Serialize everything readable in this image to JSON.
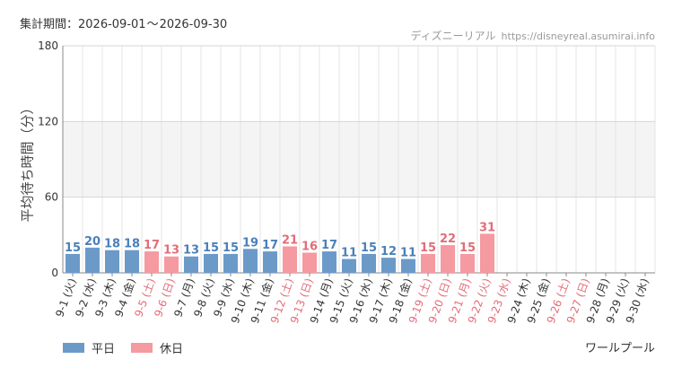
{
  "header": {
    "period_label": "集計期間：",
    "period_start": "2026-09-01",
    "period_sep": "～",
    "period_end": "2026-09-30",
    "brand_name": "ディズニーリアル",
    "brand_url": "https://disneyreal.asumirai.info"
  },
  "attraction": "ワールプール",
  "legend": [
    {
      "label": "平日",
      "color": "#6b9ac9"
    },
    {
      "label": "休日",
      "color": "#f49aa0"
    }
  ],
  "colors": {
    "weekday_bar": "#6b9ac9",
    "holiday_bar": "#f49aa0",
    "weekday_text": "#4a80b8",
    "holiday_text": "#e26d78",
    "axis_text": "#333333",
    "grid": "#e5e5e5",
    "band": "#f4f4f4"
  },
  "chart_data": {
    "type": "bar",
    "ylabel": "平均待ち時間（分）",
    "ylim": [
      0,
      180
    ],
    "yticks": [
      0,
      60,
      120,
      180
    ],
    "grid": true,
    "legend_position": "bottom-left",
    "categories": [
      "9-1",
      "9-2",
      "9-3",
      "9-4",
      "9-5",
      "9-6",
      "9-7",
      "9-8",
      "9-9",
      "9-10",
      "9-11",
      "9-12",
      "9-13",
      "9-14",
      "9-15",
      "9-16",
      "9-17",
      "9-18",
      "9-19",
      "9-20",
      "9-21",
      "9-22",
      "9-23",
      "9-24",
      "9-25",
      "9-26",
      "9-27",
      "9-28",
      "9-29",
      "9-30"
    ],
    "weekdays": [
      "(火)",
      "(水)",
      "(木)",
      "(金)",
      "(土)",
      "(日)",
      "(月)",
      "(火)",
      "(水)",
      "(木)",
      "(金)",
      "(土)",
      "(日)",
      "(月)",
      "(火)",
      "(水)",
      "(木)",
      "(金)",
      "(土)",
      "(日)",
      "(月)",
      "(火)",
      "(水)",
      "(木)",
      "(金)",
      "(土)",
      "(日)",
      "(月)",
      "(火)",
      "(水)"
    ],
    "day_type": [
      "平日",
      "平日",
      "平日",
      "平日",
      "休日",
      "休日",
      "平日",
      "平日",
      "平日",
      "平日",
      "平日",
      "休日",
      "休日",
      "平日",
      "平日",
      "平日",
      "平日",
      "平日",
      "休日",
      "休日",
      "休日",
      "休日",
      "休日",
      "平日",
      "平日",
      "休日",
      "休日",
      "平日",
      "平日",
      "平日"
    ],
    "values": [
      15,
      20,
      18,
      18,
      17,
      13,
      13,
      15,
      15,
      19,
      17,
      21,
      16,
      17,
      11,
      15,
      12,
      11,
      15,
      22,
      15,
      31,
      null,
      null,
      null,
      null,
      null,
      null,
      null,
      null
    ]
  }
}
